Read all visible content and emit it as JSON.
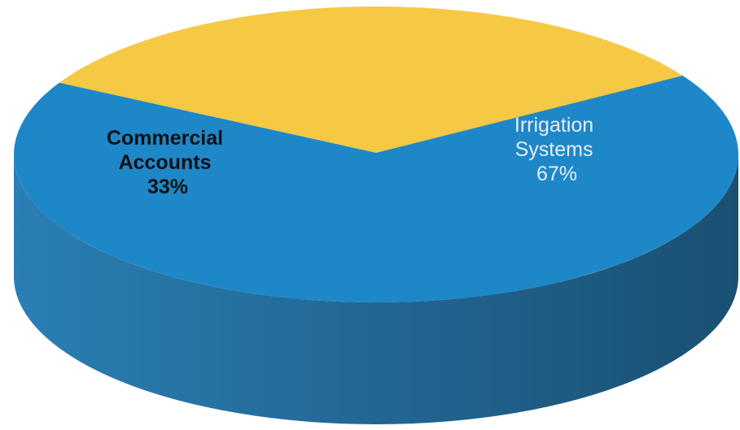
{
  "chart_data": {
    "type": "pie",
    "style": "3d",
    "title": "",
    "slices": [
      {
        "label_lines": [
          "Commercial",
          "Accounts"
        ],
        "value": 33,
        "value_label": "33%",
        "color": "#f6c944",
        "side_color": "#d9a92a",
        "label_color": "#111111"
      },
      {
        "label_lines": [
          "Irrigation",
          "Systems"
        ],
        "value": 67,
        "value_label": "67%",
        "color": "#1e87c8",
        "side_color": "#175f8c",
        "label_color": "#e8eef5"
      }
    ]
  }
}
